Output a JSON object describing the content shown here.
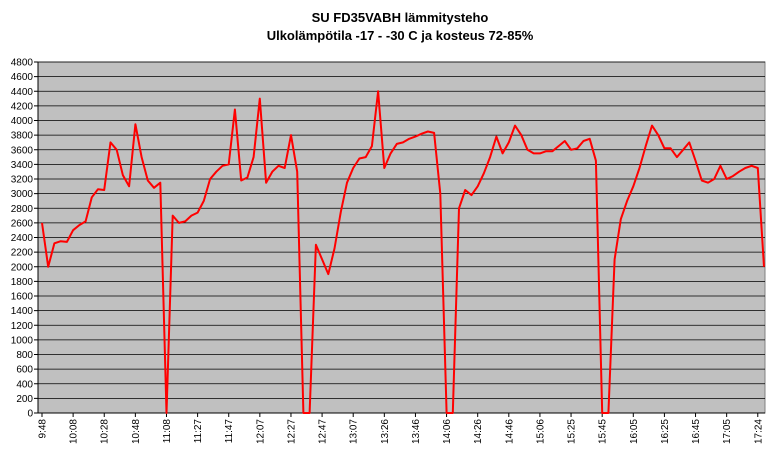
{
  "chart_data": {
    "type": "line",
    "title": "SU FD35VABH lämmitysteho",
    "subtitle": "Ulkolämpötila  -17 - -30 C ja kosteus 72-85%",
    "categories": [
      "9:48",
      null,
      null,
      null,
      null,
      "10:08",
      null,
      null,
      null,
      null,
      "10:28",
      null,
      null,
      null,
      null,
      "10:48",
      null,
      null,
      null,
      null,
      "11:08",
      null,
      null,
      null,
      null,
      "11:27",
      null,
      null,
      null,
      null,
      "11:47",
      null,
      null,
      null,
      null,
      "12:07",
      null,
      null,
      null,
      null,
      "12:27",
      null,
      null,
      null,
      null,
      "12:47",
      null,
      null,
      null,
      null,
      "13:07",
      null,
      null,
      null,
      null,
      "13:26",
      null,
      null,
      null,
      null,
      "13:46",
      null,
      null,
      null,
      null,
      "14:06",
      null,
      null,
      null,
      null,
      "14:26",
      null,
      null,
      null,
      null,
      "14:46",
      null,
      null,
      null,
      null,
      "15:06",
      null,
      null,
      null,
      null,
      "15:25",
      null,
      null,
      null,
      null,
      "15:45",
      null,
      null,
      null,
      null,
      "16:05",
      null,
      null,
      null,
      null,
      "16:25",
      null,
      null,
      null,
      null,
      "16:45",
      null,
      null,
      null,
      null,
      "17:05",
      null,
      null,
      null,
      null,
      "17:24",
      null
    ],
    "series": [
      {
        "color": "#ff0000",
        "values": [
          2600,
          2000,
          2320,
          2350,
          2340,
          2500,
          2570,
          2620,
          2950,
          3060,
          3050,
          3700,
          3600,
          3250,
          3100,
          3950,
          3500,
          3180,
          3080,
          3150,
          0,
          2700,
          2600,
          2620,
          2700,
          2740,
          2900,
          3200,
          3300,
          3380,
          3400,
          4150,
          3180,
          3220,
          3500,
          4300,
          3150,
          3300,
          3380,
          3350,
          3800,
          3300,
          0,
          0,
          2300,
          2100,
          1900,
          2250,
          2750,
          3150,
          3350,
          3480,
          3500,
          3650,
          4400,
          3350,
          3550,
          3680,
          3700,
          3750,
          3780,
          3820,
          3850,
          3830,
          3000,
          0,
          0,
          2800,
          3050,
          2980,
          3100,
          3280,
          3500,
          3780,
          3550,
          3700,
          3930,
          3800,
          3600,
          3550,
          3550,
          3580,
          3580,
          3650,
          3720,
          3600,
          3620,
          3720,
          3750,
          3450,
          0,
          0,
          2100,
          2650,
          2900,
          3100,
          3350,
          3650,
          3930,
          3800,
          3620,
          3620,
          3500,
          3600,
          3700,
          3450,
          3180,
          3150,
          3200,
          3380,
          3200,
          3240,
          3300,
          3350,
          3380,
          3350,
          2000
        ]
      }
    ],
    "ylim": [
      0,
      4800
    ],
    "yticks": [
      0,
      200,
      400,
      600,
      800,
      1000,
      1200,
      1400,
      1600,
      1800,
      2000,
      2200,
      2400,
      2600,
      2800,
      3000,
      3200,
      3400,
      3600,
      3800,
      4000,
      4200,
      4400,
      4600,
      4800
    ],
    "grid": true,
    "plot_background": "#c0c0c0"
  }
}
